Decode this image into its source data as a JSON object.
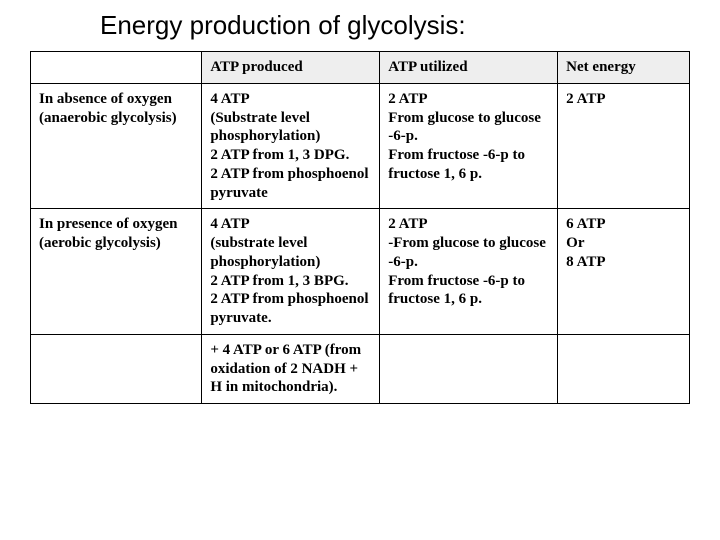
{
  "title": "Energy production of glycolysis:",
  "columns": [
    "",
    "ATP produced",
    "ATP utilized",
    "Net energy"
  ],
  "rows": [
    {
      "label": "In absence of oxygen (anaerobic glycolysis)",
      "produced": "4 ATP\n(Substrate level phosphorylation)\n2 ATP from 1, 3 DPG.\n2 ATP from phosphoenol pyruvate",
      "utilized": "2 ATP\nFrom glucose to glucose -6-p.\nFrom fructose -6-p to fructose 1, 6 p.",
      "net": "2 ATP"
    },
    {
      "label": "In presence of oxygen (aerobic glycolysis)",
      "produced": "4 ATP\n(substrate level phosphorylation)\n2 ATP from 1, 3 BPG.\n2 ATP from phosphoenol pyruvate.",
      "utilized": "2 ATP\n-From glucose to glucose -6-p.\nFrom fructose -6-p to fructose 1, 6 p.",
      "net": "6 ATP\n Or\n8 ATP"
    },
    {
      "label": "",
      "produced": "+ 4 ATP or 6 ATP (from oxidation of 2 NADH + H in mitochondria).",
      "utilized": "",
      "net": ""
    }
  ],
  "styling": {
    "title_font": "Arial",
    "title_fontsize": 26,
    "body_font": "Times New Roman",
    "body_fontsize": 15,
    "border_color": "#000000",
    "header_bg": "#eeeeee",
    "background": "#ffffff"
  }
}
